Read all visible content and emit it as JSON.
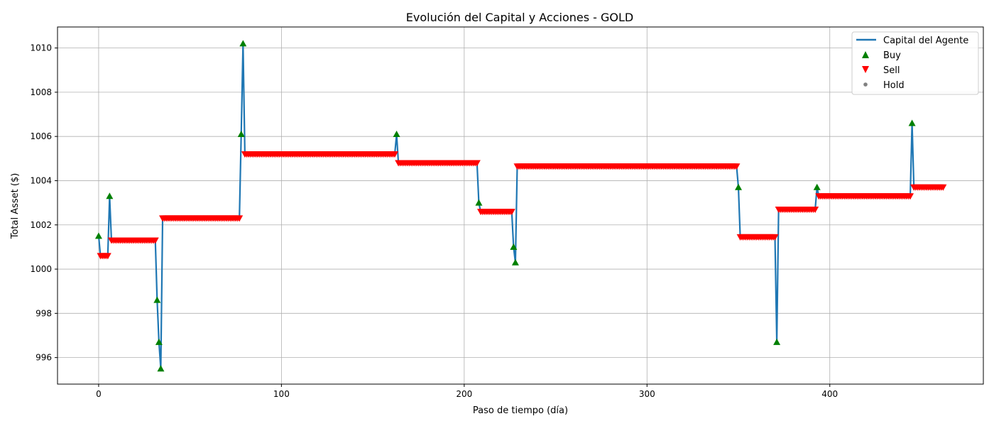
{
  "chart_data": {
    "type": "line",
    "title": "Evolución del Capital y Acciones - GOLD",
    "xlabel": "Paso de tiempo (día)",
    "ylabel": "Total Asset ($)",
    "xlim": [
      -22.5,
      484
    ],
    "ylim": [
      994.8,
      1010.95
    ],
    "xticks": [
      0,
      100,
      200,
      300,
      400
    ],
    "yticks": [
      996,
      998,
      1000,
      1002,
      1004,
      1006,
      1008,
      1010
    ],
    "grid": true,
    "legend_position": "top-right",
    "legend": [
      "Capital del Agente",
      "Buy",
      "Sell",
      "Hold"
    ],
    "colors": {
      "line": "#1f77b4",
      "buy": "#008000",
      "sell": "#ff0000",
      "hold": "#808080",
      "grid": "#b0b0b0"
    },
    "series": [
      {
        "name": "Capital del Agente",
        "segments": [
          [
            0,
            1001.5
          ],
          [
            1,
            1000.6
          ],
          [
            5,
            1000.6
          ],
          [
            6,
            1003.3
          ],
          [
            7,
            1001.3
          ],
          [
            31,
            1001.3
          ],
          [
            32,
            998.6
          ],
          [
            33,
            996.7
          ],
          [
            34,
            995.5
          ],
          [
            35,
            1002.3
          ],
          [
            77,
            1002.3
          ],
          [
            78,
            1006.1
          ],
          [
            79,
            1010.2
          ],
          [
            80,
            1005.2
          ],
          [
            162,
            1005.2
          ],
          [
            163,
            1006.1
          ],
          [
            164,
            1004.8
          ],
          [
            207,
            1004.8
          ],
          [
            208,
            1003.0
          ],
          [
            209,
            1002.6
          ],
          [
            226,
            1002.6
          ],
          [
            227,
            1001.0
          ],
          [
            228,
            1000.3
          ],
          [
            229,
            1004.65
          ],
          [
            349,
            1004.65
          ],
          [
            350,
            1003.7
          ],
          [
            351,
            1001.45
          ],
          [
            370,
            1001.45
          ],
          [
            371,
            996.7
          ],
          [
            372,
            1002.7
          ],
          [
            392,
            1002.7
          ],
          [
            393,
            1003.7
          ],
          [
            394,
            1003.3
          ],
          [
            444,
            1003.3
          ],
          [
            445,
            1006.6
          ],
          [
            446,
            1003.7
          ],
          [
            462,
            1003.7
          ]
        ]
      }
    ],
    "buy_points": [
      [
        0,
        1001.5
      ],
      [
        6,
        1003.3
      ],
      [
        32,
        998.6
      ],
      [
        33,
        996.7
      ],
      [
        34,
        995.5
      ],
      [
        78,
        1006.1
      ],
      [
        79,
        1010.2
      ],
      [
        163,
        1006.1
      ],
      [
        208,
        1003.0
      ],
      [
        227,
        1001.0
      ],
      [
        228,
        1000.3
      ],
      [
        350,
        1003.7
      ],
      [
        371,
        996.7
      ],
      [
        393,
        1003.7
      ],
      [
        445,
        1006.6
      ]
    ],
    "sell_runs": [
      {
        "from": 1,
        "to": 5,
        "y": 1000.6
      },
      {
        "from": 7,
        "to": 31,
        "y": 1001.3
      },
      {
        "from": 35,
        "to": 77,
        "y": 1002.3
      },
      {
        "from": 80,
        "to": 162,
        "y": 1005.2
      },
      {
        "from": 164,
        "to": 207,
        "y": 1004.8
      },
      {
        "from": 209,
        "to": 226,
        "y": 1002.6
      },
      {
        "from": 229,
        "to": 349,
        "y": 1004.65
      },
      {
        "from": 351,
        "to": 370,
        "y": 1001.45
      },
      {
        "from": 372,
        "to": 392,
        "y": 1002.7
      },
      {
        "from": 394,
        "to": 444,
        "y": 1003.3
      },
      {
        "from": 446,
        "to": 462,
        "y": 1003.7
      }
    ]
  }
}
